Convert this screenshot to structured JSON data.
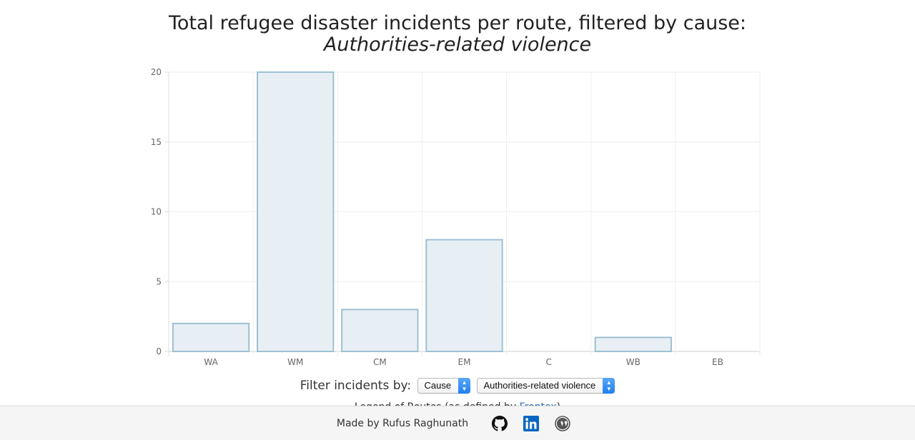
{
  "title": {
    "main": "Total refugee disaster incidents per route, filtered by cause:",
    "subtitle": "Authorities-related violence"
  },
  "chart_data": {
    "type": "bar",
    "categories": [
      "WA",
      "WM",
      "CM",
      "EM",
      "C",
      "WB",
      "EB"
    ],
    "values": [
      2,
      20,
      3,
      8,
      0,
      1,
      0
    ],
    "ylim": [
      0,
      20
    ],
    "yticks": [
      0,
      5,
      10,
      15,
      20
    ],
    "grid": true,
    "legend": "none",
    "bar_fill": "#e8eff4",
    "bar_stroke": "#9dc0d2"
  },
  "filter": {
    "label": "Filter incidents by:",
    "type_value": "Cause",
    "cause_value": "Authorities-related violence"
  },
  "note": {
    "text": "Legend of Routes (as defined by ",
    "link": "Frontex",
    "tail": ")"
  },
  "footer": {
    "credit": "Made by Rufus Raghunath",
    "icons": [
      "github-icon",
      "linkedin-icon",
      "wordpress-icon"
    ]
  }
}
